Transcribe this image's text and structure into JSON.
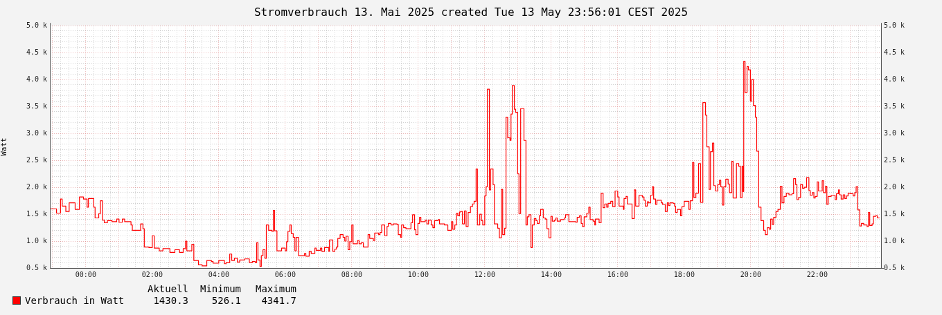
{
  "chart_data": {
    "type": "step",
    "title": "Stromverbrauch 13. Mai 2025 created Tue 13 May 23:56:01 CEST 2025",
    "ylabel": "Watt",
    "x": [
      -1.06,
      -0.88,
      -0.76,
      -0.71,
      -0.6,
      -0.5,
      -0.32,
      -0.19,
      -0.07,
      0.04,
      0.08,
      0.24,
      0.28,
      0.39,
      0.44,
      0.5,
      0.56,
      0.65,
      0.79,
      0.93,
      1,
      1.1,
      1.17,
      1.36,
      1.4,
      1.65,
      1.72,
      1.76,
      1.9,
      2,
      2.06,
      2.21,
      2.32,
      2.53,
      2.68,
      2.82,
      2.93,
      3,
      3.04,
      3.19,
      3.25,
      3.39,
      3.5,
      3.64,
      3.78,
      3.83,
      4,
      4.17,
      4.22,
      4.33,
      4.39,
      4.47,
      4.56,
      4.63,
      4.78,
      4.92,
      5.01,
      5.1,
      5.14,
      5.18,
      5.24,
      5.28,
      5.33,
      5.39,
      5.43,
      5.5,
      5.6,
      5.64,
      5.68,
      5.75,
      5.89,
      6,
      6.04,
      6.08,
      6.14,
      6.18,
      6.24,
      6.29,
      6.33,
      6.4,
      6.58,
      6.62,
      6.72,
      6.78,
      6.89,
      6.93,
      7.06,
      7.1,
      7.18,
      7.31,
      7.33,
      7.43,
      7.49,
      7.54,
      7.58,
      7.65,
      7.74,
      7.79,
      7.83,
      7.89,
      7.94,
      8,
      8.04,
      8.17,
      8.22,
      8.29,
      8.35,
      8.49,
      8.54,
      8.65,
      8.69,
      8.81,
      8.85,
      8.9,
      8.99,
      9.06,
      9.1,
      9.18,
      9.25,
      9.36,
      9.4,
      9.47,
      9.5,
      9.56,
      9.63,
      9.78,
      9.83,
      9.89,
      9.93,
      9.99,
      10.04,
      10.08,
      10.21,
      10.26,
      10.31,
      10.39,
      10.44,
      10.49,
      10.6,
      10.64,
      10.79,
      10.89,
      11,
      11.04,
      11.1,
      11.15,
      11.19,
      11.24,
      11.28,
      11.33,
      11.39,
      11.44,
      11.5,
      11.57,
      11.63,
      11.68,
      11.74,
      11.78,
      11.85,
      11.9,
      11.94,
      12,
      12.04,
      12.08,
      12.14,
      12.18,
      12.25,
      12.29,
      12.39,
      12.44,
      12.5,
      12.54,
      12.6,
      12.64,
      12.69,
      12.76,
      12.79,
      12.83,
      12.89,
      12.93,
      12.99,
      13.03,
      13.08,
      13.18,
      13.24,
      13.28,
      13.33,
      13.39,
      13.43,
      13.49,
      13.54,
      13.58,
      13.64,
      13.68,
      13.76,
      13.82,
      13.87,
      13.93,
      13.99,
      14.03,
      14.1,
      14.14,
      14.18,
      14.28,
      14.39,
      14.43,
      14.53,
      14.74,
      14.78,
      14.85,
      14.9,
      14.94,
      14.99,
      15.07,
      15.13,
      15.17,
      15.26,
      15.31,
      15.33,
      15.44,
      15.5,
      15.56,
      15.61,
      15.67,
      15.71,
      15.79,
      15.85,
      15.92,
      16,
      16.04,
      16.17,
      16.19,
      16.25,
      16.29,
      16.43,
      16.5,
      16.54,
      16.64,
      16.74,
      16.79,
      16.83,
      16.89,
      16.93,
      16.99,
      17.04,
      17.08,
      17.14,
      17.18,
      17.31,
      17.35,
      17.43,
      17.49,
      17.53,
      17.57,
      17.67,
      17.71,
      17.74,
      17.79,
      17.89,
      17.93,
      18,
      18.14,
      18.18,
      18.25,
      18.29,
      18.35,
      18.43,
      18.49,
      18.56,
      18.64,
      18.68,
      18.75,
      18.79,
      18.85,
      18.89,
      18.94,
      19.01,
      19.06,
      19.1,
      19.15,
      19.19,
      19.25,
      19.32,
      19.36,
      19.43,
      19.47,
      19.57,
      19.64,
      19.69,
      19.74,
      19.77,
      19.79,
      19.83,
      19.89,
      19.93,
      19.99,
      20.03,
      20.08,
      20.14,
      20.18,
      20.24,
      20.31,
      20.39,
      20.44,
      20.5,
      20.56,
      20.6,
      20.65,
      20.69,
      20.76,
      20.82,
      20.89,
      20.94,
      21,
      21.07,
      21.15,
      21.24,
      21.29,
      21.35,
      21.39,
      21.44,
      21.5,
      21.56,
      21.61,
      21.68,
      21.75,
      21.79,
      21.85,
      21.9,
      21.94,
      22,
      22.04,
      22.15,
      22.19,
      22.25,
      22.29,
      22.33,
      22.42,
      22.54,
      22.58,
      22.64,
      22.67,
      22.72,
      22.78,
      22.83,
      22.88,
      22.93,
      23.01,
      23.08,
      23.13,
      23.17,
      23.22,
      23.28,
      23.33,
      23.4,
      23.5,
      23.54,
      23.58,
      23.65,
      23.69,
      23.76,
      23.81,
      23.88
    ],
    "series": [
      {
        "name": "Verbrauch in Watt",
        "color": "#ff0000",
        "values": [
          1600,
          1520,
          1780,
          1650,
          1550,
          1710,
          1590,
          1820,
          1780,
          1630,
          1790,
          1630,
          1430,
          1510,
          1750,
          1390,
          1340,
          1380,
          1360,
          1410,
          1350,
          1410,
          1360,
          1300,
          1200,
          1320,
          1230,
          890,
          880,
          1100,
          870,
          820,
          860,
          790,
          840,
          790,
          860,
          1000,
          820,
          940,
          640,
          560,
          540,
          640,
          620,
          590,
          640,
          580,
          600,
          760,
          640,
          680,
          610,
          650,
          670,
          600,
          620,
          600,
          970,
          650,
          530,
          730,
          840,
          680,
          1300,
          1200,
          1180,
          1570,
          1190,
          820,
          870,
          820,
          990,
          1180,
          1300,
          1140,
          1070,
          820,
          1070,
          730,
          770,
          720,
          810,
          770,
          870,
          830,
          870,
          810,
          880,
          810,
          1020,
          810,
          850,
          890,
          1050,
          1120,
          1070,
          1000,
          1090,
          840,
          990,
          1300,
          950,
          1010,
          950,
          970,
          890,
          1120,
          1050,
          1010,
          1150,
          1120,
          1160,
          1300,
          1100,
          1270,
          1330,
          1300,
          1320,
          1310,
          1120,
          1070,
          1300,
          1250,
          1230,
          1340,
          1490,
          1210,
          1120,
          1330,
          1440,
          1360,
          1390,
          1320,
          1390,
          1300,
          1250,
          1380,
          1400,
          1320,
          1300,
          1200,
          1360,
          1220,
          1300,
          1520,
          1470,
          1540,
          1550,
          1320,
          1560,
          1270,
          1530,
          1640,
          1690,
          1740,
          2340,
          1300,
          1500,
          1380,
          1300,
          1840,
          2010,
          3820,
          1950,
          2340,
          2050,
          1320,
          1240,
          1060,
          1960,
          1120,
          1240,
          3300,
          2920,
          2870,
          3360,
          3890,
          3450,
          3390,
          2250,
          1510,
          3460,
          2870,
          1300,
          1450,
          1490,
          880,
          1300,
          1420,
          1380,
          1330,
          1470,
          1590,
          1430,
          1410,
          1230,
          1060,
          1460,
          1370,
          1390,
          1430,
          1370,
          1400,
          1430,
          1490,
          1360,
          1350,
          1440,
          1470,
          1330,
          1270,
          1450,
          1520,
          1630,
          1400,
          1370,
          1300,
          1410,
          1340,
          1890,
          1620,
          1690,
          1630,
          1700,
          1740,
          1640,
          1930,
          1820,
          1650,
          1590,
          1790,
          1830,
          1690,
          1420,
          1950,
          1650,
          1850,
          1820,
          1760,
          1650,
          1730,
          1710,
          1850,
          2010,
          1780,
          1680,
          1760,
          1710,
          1680,
          1550,
          1710,
          1660,
          1710,
          1700,
          1650,
          1530,
          1590,
          1470,
          1640,
          1740,
          1590,
          1750,
          2460,
          1810,
          1890,
          2440,
          1720,
          3570,
          3340,
          2750,
          1960,
          2660,
          2820,
          2030,
          1930,
          2050,
          2130,
          2010,
          1670,
          2010,
          2150,
          2060,
          1900,
          2480,
          1800,
          2440,
          2390,
          1810,
          2390,
          1920,
          4340,
          3760,
          4240,
          4180,
          3600,
          4000,
          3520,
          3300,
          2670,
          1630,
          1380,
          1200,
          1120,
          1250,
          1220,
          1410,
          1310,
          1440,
          1550,
          1590,
          2020,
          1710,
          1830,
          1890,
          1860,
          1880,
          2160,
          2050,
          1770,
          1810,
          2050,
          1980,
          2000,
          2180,
          1940,
          1850,
          1900,
          1800,
          1830,
          2100,
          1930,
          2120,
          1900,
          2020,
          1680,
          1830,
          1850,
          1770,
          1880,
          1950,
          1860,
          1780,
          1860,
          1790,
          1840,
          1890,
          1880,
          1840,
          1900,
          2010,
          1580,
          1280,
          1330,
          1300,
          1270,
          1530,
          1290,
          1320,
          1460,
          1470,
          1430,
          1430
        ]
      }
    ],
    "xlim": [
      -1.08,
      23.92
    ],
    "xticks": [
      {
        "value": -1,
        "label": null
      },
      {
        "value": -0.75,
        "label": null
      },
      {
        "value": -0.5,
        "label": null
      },
      {
        "value": -0.25,
        "label": null
      },
      {
        "value": 0,
        "label": "00:00"
      },
      {
        "value": 0.25,
        "label": null
      },
      {
        "value": 0.5,
        "label": null
      },
      {
        "value": 0.75,
        "label": null
      },
      {
        "value": 1,
        "label": null
      },
      {
        "value": 1.25,
        "label": null
      },
      {
        "value": 1.5,
        "label": null
      },
      {
        "value": 1.75,
        "label": null
      },
      {
        "value": 2,
        "label": "02:00"
      },
      {
        "value": 2.25,
        "label": null
      },
      {
        "value": 2.5,
        "label": null
      },
      {
        "value": 2.75,
        "label": null
      },
      {
        "value": 3,
        "label": null
      },
      {
        "value": 3.25,
        "label": null
      },
      {
        "value": 3.5,
        "label": null
      },
      {
        "value": 3.75,
        "label": null
      },
      {
        "value": 4,
        "label": "04:00"
      },
      {
        "value": 4.25,
        "label": null
      },
      {
        "value": 4.5,
        "label": null
      },
      {
        "value": 4.75,
        "label": null
      },
      {
        "value": 5,
        "label": null
      },
      {
        "value": 5.25,
        "label": null
      },
      {
        "value": 5.5,
        "label": null
      },
      {
        "value": 5.75,
        "label": null
      },
      {
        "value": 6,
        "label": "06:00"
      },
      {
        "value": 6.25,
        "label": null
      },
      {
        "value": 6.5,
        "label": null
      },
      {
        "value": 6.75,
        "label": null
      },
      {
        "value": 7,
        "label": null
      },
      {
        "value": 7.25,
        "label": null
      },
      {
        "value": 7.5,
        "label": null
      },
      {
        "value": 7.75,
        "label": null
      },
      {
        "value": 8,
        "label": "08:00"
      },
      {
        "value": 8.25,
        "label": null
      },
      {
        "value": 8.5,
        "label": null
      },
      {
        "value": 8.75,
        "label": null
      },
      {
        "value": 9,
        "label": null
      },
      {
        "value": 9.25,
        "label": null
      },
      {
        "value": 9.5,
        "label": null
      },
      {
        "value": 9.75,
        "label": null
      },
      {
        "value": 10,
        "label": "10:00"
      },
      {
        "value": 10.25,
        "label": null
      },
      {
        "value": 10.5,
        "label": null
      },
      {
        "value": 10.75,
        "label": null
      },
      {
        "value": 11,
        "label": null
      },
      {
        "value": 11.25,
        "label": null
      },
      {
        "value": 11.5,
        "label": null
      },
      {
        "value": 11.75,
        "label": null
      },
      {
        "value": 12,
        "label": "12:00"
      },
      {
        "value": 12.25,
        "label": null
      },
      {
        "value": 12.5,
        "label": null
      },
      {
        "value": 12.75,
        "label": null
      },
      {
        "value": 13,
        "label": null
      },
      {
        "value": 13.25,
        "label": null
      },
      {
        "value": 13.5,
        "label": null
      },
      {
        "value": 13.75,
        "label": null
      },
      {
        "value": 14,
        "label": "14:00"
      },
      {
        "value": 14.25,
        "label": null
      },
      {
        "value": 14.5,
        "label": null
      },
      {
        "value": 14.75,
        "label": null
      },
      {
        "value": 15,
        "label": null
      },
      {
        "value": 15.25,
        "label": null
      },
      {
        "value": 15.5,
        "label": null
      },
      {
        "value": 15.75,
        "label": null
      },
      {
        "value": 16,
        "label": "16:00"
      },
      {
        "value": 16.25,
        "label": null
      },
      {
        "value": 16.5,
        "label": null
      },
      {
        "value": 16.75,
        "label": null
      },
      {
        "value": 17,
        "label": null
      },
      {
        "value": 17.25,
        "label": null
      },
      {
        "value": 17.5,
        "label": null
      },
      {
        "value": 17.75,
        "label": null
      },
      {
        "value": 18,
        "label": "18:00"
      },
      {
        "value": 18.25,
        "label": null
      },
      {
        "value": 18.5,
        "label": null
      },
      {
        "value": 18.75,
        "label": null
      },
      {
        "value": 19,
        "label": null
      },
      {
        "value": 19.25,
        "label": null
      },
      {
        "value": 19.5,
        "label": null
      },
      {
        "value": 19.75,
        "label": null
      },
      {
        "value": 20,
        "label": "20:00"
      },
      {
        "value": 20.25,
        "label": null
      },
      {
        "value": 20.5,
        "label": null
      },
      {
        "value": 20.75,
        "label": null
      },
      {
        "value": 21,
        "label": null
      },
      {
        "value": 21.25,
        "label": null
      },
      {
        "value": 21.5,
        "label": null
      },
      {
        "value": 21.75,
        "label": null
      },
      {
        "value": 22,
        "label": "22:00"
      },
      {
        "value": 22.25,
        "label": null
      },
      {
        "value": 22.5,
        "label": null
      },
      {
        "value": 22.75,
        "label": null
      },
      {
        "value": 23,
        "label": null
      },
      {
        "value": 23.25,
        "label": null
      },
      {
        "value": 23.5,
        "label": null
      },
      {
        "value": 23.75,
        "label": null
      }
    ],
    "ylim": [
      500,
      5000
    ],
    "yticks": [
      {
        "value": 500,
        "label": "0.5 k"
      },
      {
        "value": 600,
        "label": null
      },
      {
        "value": 700,
        "label": null
      },
      {
        "value": 800,
        "label": null
      },
      {
        "value": 900,
        "label": null
      },
      {
        "value": 1000,
        "label": "1.0 k"
      },
      {
        "value": 1100,
        "label": null
      },
      {
        "value": 1200,
        "label": null
      },
      {
        "value": 1300,
        "label": null
      },
      {
        "value": 1400,
        "label": null
      },
      {
        "value": 1500,
        "label": "1.5 k"
      },
      {
        "value": 1600,
        "label": null
      },
      {
        "value": 1700,
        "label": null
      },
      {
        "value": 1800,
        "label": null
      },
      {
        "value": 1900,
        "label": null
      },
      {
        "value": 2000,
        "label": "2.0 k"
      },
      {
        "value": 2100,
        "label": null
      },
      {
        "value": 2200,
        "label": null
      },
      {
        "value": 2300,
        "label": null
      },
      {
        "value": 2400,
        "label": null
      },
      {
        "value": 2500,
        "label": "2.5 k"
      },
      {
        "value": 2600,
        "label": null
      },
      {
        "value": 2700,
        "label": null
      },
      {
        "value": 2800,
        "label": null
      },
      {
        "value": 2900,
        "label": null
      },
      {
        "value": 3000,
        "label": "3.0 k"
      },
      {
        "value": 3100,
        "label": null
      },
      {
        "value": 3200,
        "label": null
      },
      {
        "value": 3300,
        "label": null
      },
      {
        "value": 3400,
        "label": null
      },
      {
        "value": 3500,
        "label": "3.5 k"
      },
      {
        "value": 3600,
        "label": null
      },
      {
        "value": 3700,
        "label": null
      },
      {
        "value": 3800,
        "label": null
      },
      {
        "value": 3900,
        "label": null
      },
      {
        "value": 4000,
        "label": "4.0 k"
      },
      {
        "value": 4100,
        "label": null
      },
      {
        "value": 4200,
        "label": null
      },
      {
        "value": 4300,
        "label": null
      },
      {
        "value": 4400,
        "label": null
      },
      {
        "value": 4500,
        "label": "4.5 k"
      },
      {
        "value": 4600,
        "label": null
      },
      {
        "value": 4700,
        "label": null
      },
      {
        "value": 4800,
        "label": null
      },
      {
        "value": 4900,
        "label": null
      },
      {
        "value": 5000,
        "label": "5.0 k"
      }
    ],
    "y2lim": [
      500,
      5000
    ],
    "y2ticks": [
      {
        "value": 500,
        "label": "0.5 k"
      },
      {
        "value": 1000,
        "label": "1.0 k"
      },
      {
        "value": 1500,
        "label": "1.5 k"
      },
      {
        "value": 2000,
        "label": "2.0 k"
      },
      {
        "value": 2500,
        "label": "2.5 k"
      },
      {
        "value": 3000,
        "label": "3.0 k"
      },
      {
        "value": 3500,
        "label": "3.5 k"
      },
      {
        "value": 4000,
        "label": "4.0 k"
      },
      {
        "value": 4500,
        "label": "4.5 k"
      },
      {
        "value": 5000,
        "label": "5.0 k"
      }
    ],
    "grid": true,
    "legend": "bottom left",
    "annotations": [
      "Aktuell",
      "Minimum",
      "Maximum",
      "1430.3",
      "526.1",
      "4341.7"
    ]
  }
}
